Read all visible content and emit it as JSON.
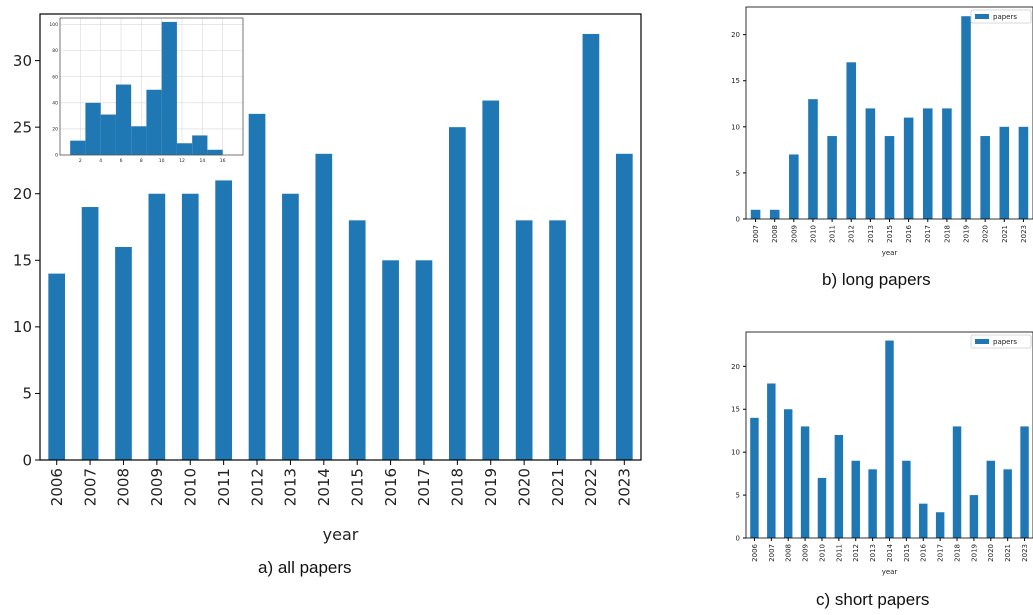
{
  "colors": {
    "bar": "#1f77b4",
    "axis": "#000000",
    "grid": "#d9d9d9"
  },
  "captions": {
    "a": "a) all papers",
    "b": "b) long papers",
    "c": "c) short papers"
  },
  "chart_data": [
    {
      "id": "all",
      "type": "bar",
      "xlabel": "year",
      "ylabel": "",
      "categories": [
        "2006",
        "2007",
        "2008",
        "2009",
        "2010",
        "2011",
        "2012",
        "2013",
        "2014",
        "2015",
        "2016",
        "2017",
        "2018",
        "2019",
        "2020",
        "2021",
        "2022",
        "2023"
      ],
      "values": [
        14,
        19,
        16,
        20,
        20,
        21,
        26,
        20,
        23,
        18,
        15,
        15,
        25,
        27,
        18,
        18,
        32,
        23
      ],
      "ylim": [
        0,
        33.5
      ],
      "yticks": [
        0,
        5,
        10,
        15,
        20,
        25,
        30
      ],
      "grid": false,
      "legend": null
    },
    {
      "id": "inset-histogram",
      "type": "bar",
      "xlabel": "",
      "ylabel": "",
      "bins": [
        [
          1,
          2.5
        ],
        [
          2.5,
          4
        ],
        [
          4,
          5.5
        ],
        [
          5.5,
          7
        ],
        [
          7,
          8.5
        ],
        [
          8.5,
          10
        ],
        [
          10,
          11.5
        ],
        [
          11.5,
          13
        ],
        [
          13,
          14.5
        ],
        [
          14.5,
          16
        ],
        [
          16,
          17.5
        ]
      ],
      "values": [
        11,
        40,
        31,
        54,
        22,
        50,
        102,
        9,
        15,
        4,
        0
      ],
      "xlim": [
        0,
        18
      ],
      "ylim": [
        0,
        105
      ],
      "xticks": [
        2,
        4,
        6,
        8,
        10,
        12,
        14,
        16
      ],
      "yticks": [
        0,
        20,
        40,
        60,
        80,
        100
      ],
      "grid": true,
      "legend": null
    },
    {
      "id": "long",
      "type": "bar",
      "xlabel": "year",
      "ylabel": "",
      "categories": [
        "2007",
        "2008",
        "2009",
        "2010",
        "2011",
        "2012",
        "2013",
        "2015",
        "2016",
        "2017",
        "2018",
        "2019",
        "2020",
        "2021",
        "2023"
      ],
      "values": [
        1,
        1,
        7,
        13,
        9,
        17,
        12,
        9,
        11,
        12,
        12,
        22,
        9,
        10,
        10
      ],
      "ylim": [
        0,
        23
      ],
      "yticks": [
        0,
        5,
        10,
        15,
        20
      ],
      "grid": false,
      "legend": {
        "entries": [
          "papers"
        ],
        "position": "top-right"
      }
    },
    {
      "id": "short",
      "type": "bar",
      "xlabel": "year",
      "ylabel": "",
      "categories": [
        "2006",
        "2007",
        "2008",
        "2009",
        "2010",
        "2011",
        "2012",
        "2013",
        "2014",
        "2015",
        "2016",
        "2017",
        "2018",
        "2019",
        "2020",
        "2021",
        "2023"
      ],
      "values": [
        14,
        18,
        15,
        13,
        7,
        12,
        9,
        8,
        23,
        9,
        4,
        3,
        13,
        5,
        9,
        8,
        13
      ],
      "ylim": [
        0,
        24
      ],
      "yticks": [
        0,
        5,
        10,
        15,
        20
      ],
      "grid": false,
      "legend": {
        "entries": [
          "papers"
        ],
        "position": "top-right"
      }
    }
  ]
}
